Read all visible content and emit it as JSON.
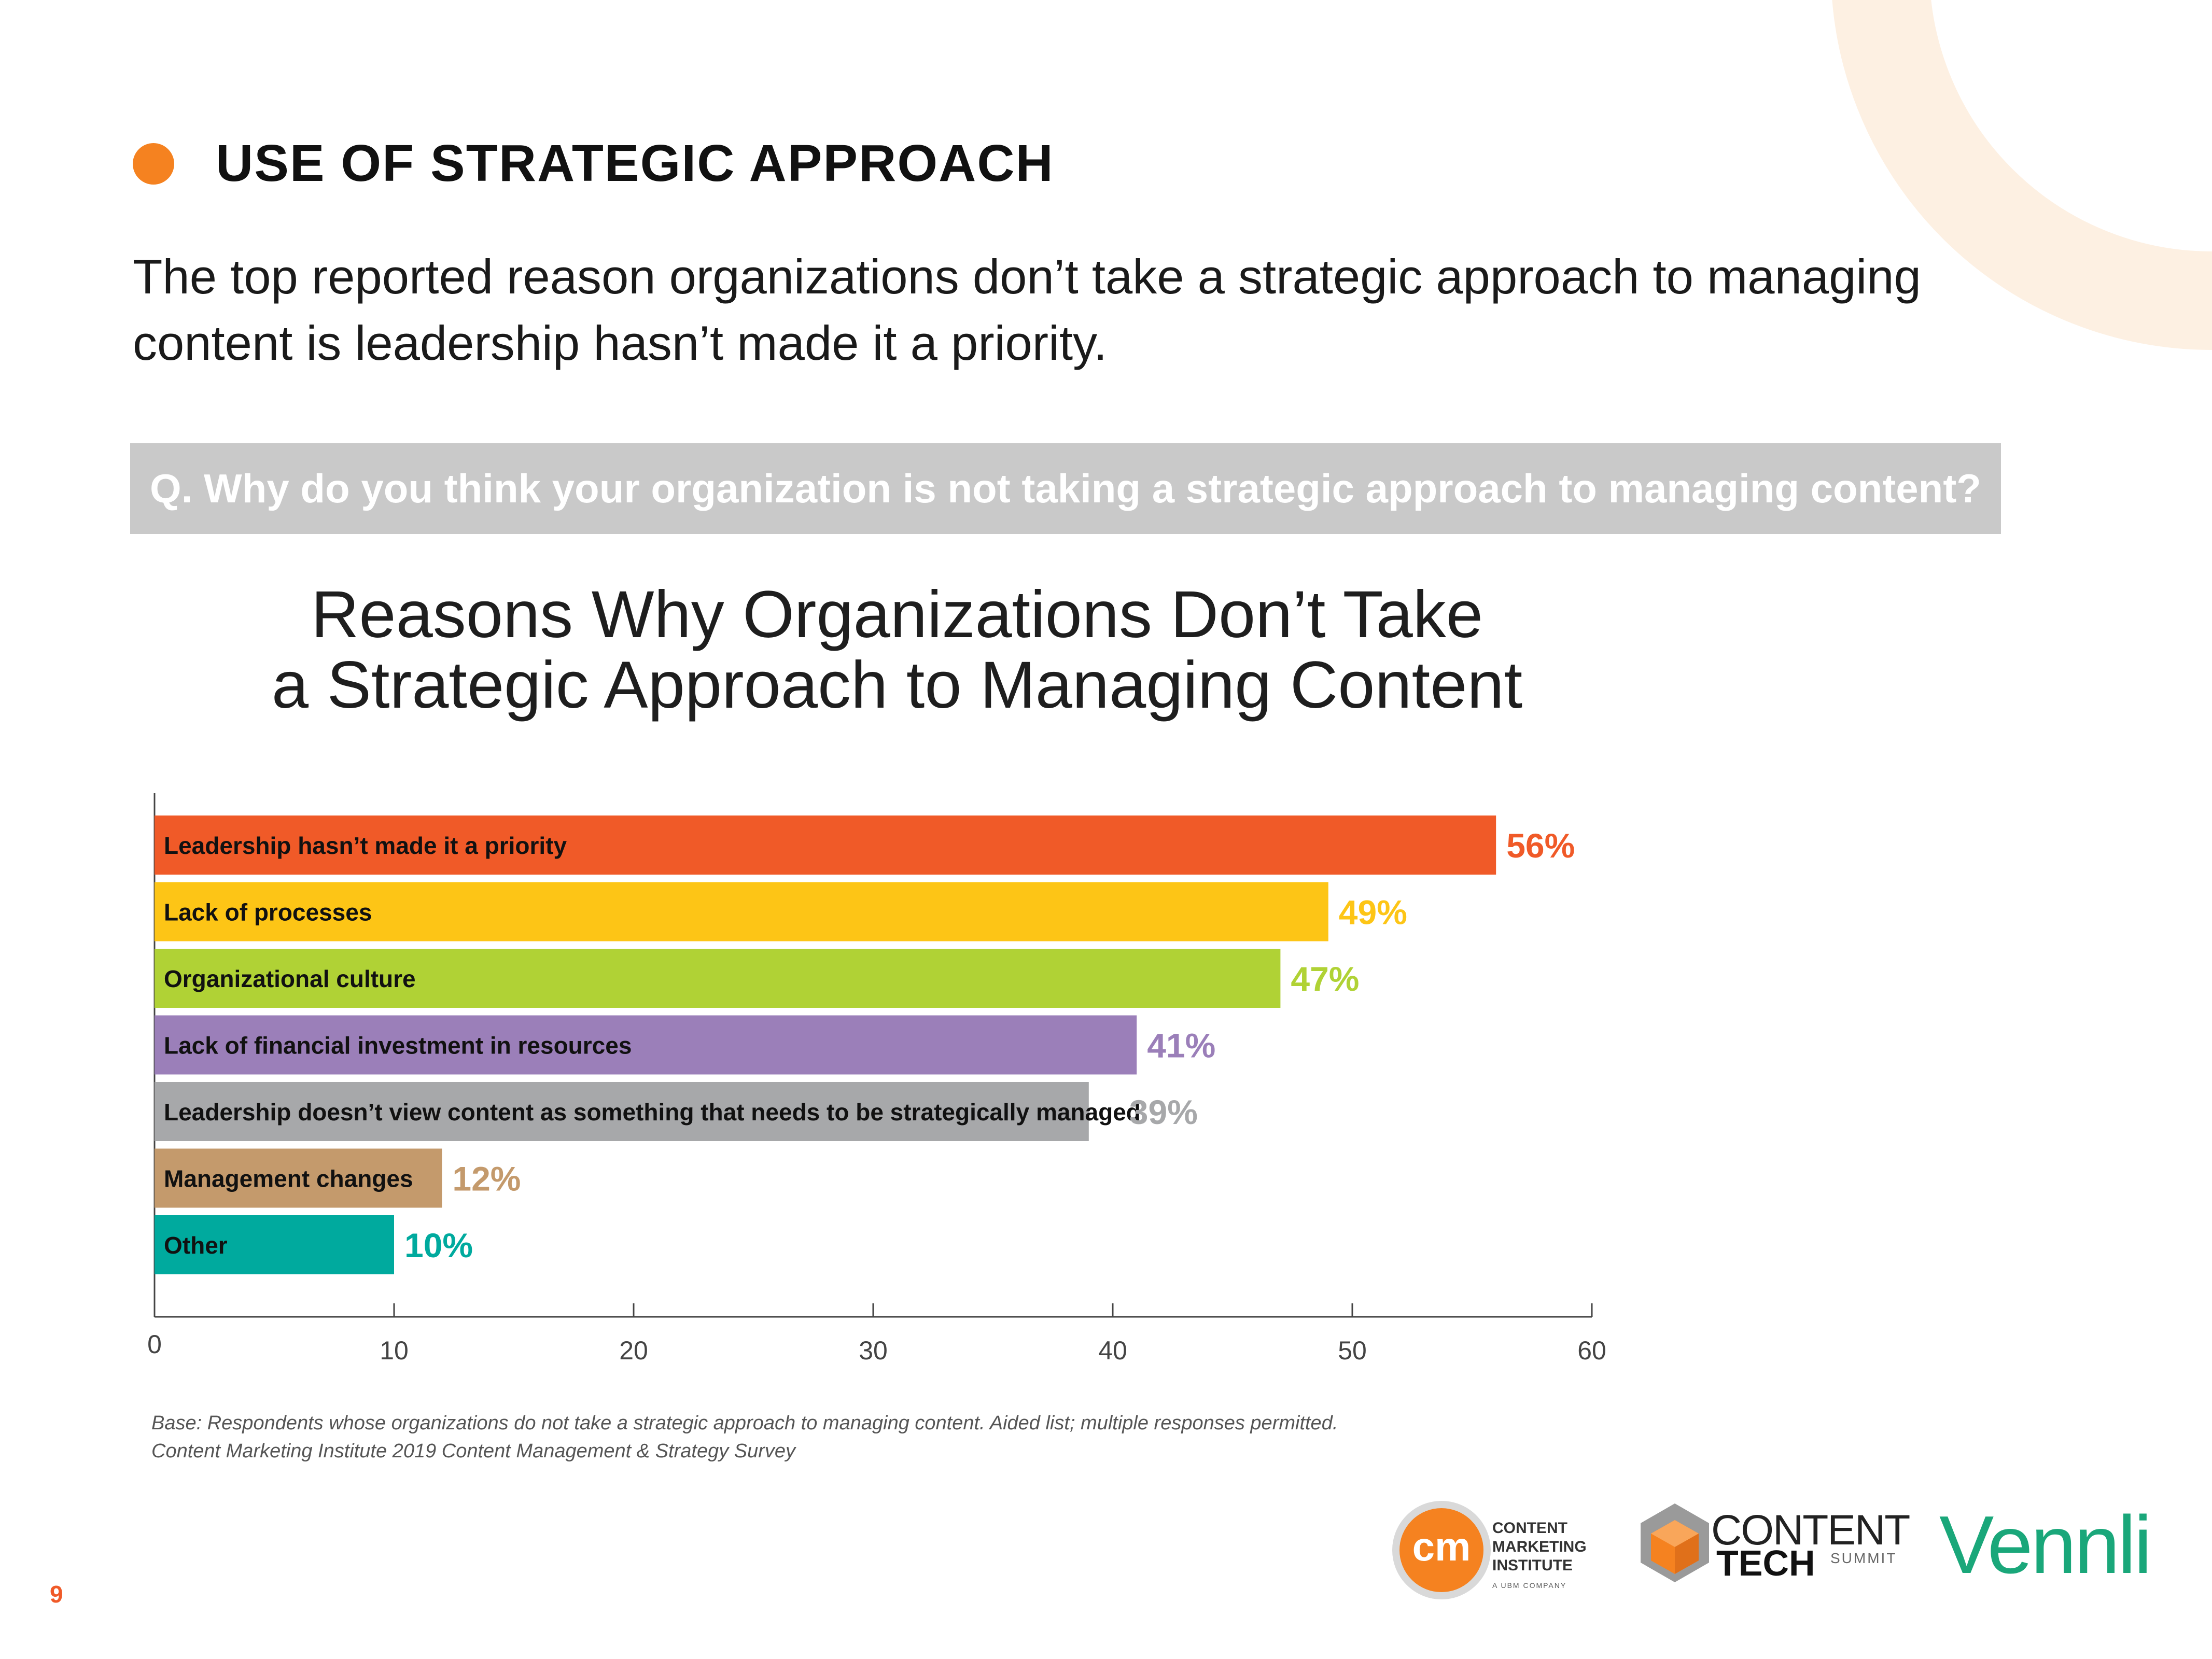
{
  "page": {
    "section_title": "USE OF STRATEGIC APPROACH",
    "subtitle": "The top reported reason organizations don’t take a strategic approach to managing content is leadership hasn’t made it a priority.",
    "question": "Q. Why do you think your organization is not taking a strategic approach to managing content?",
    "source_line_1": "Base: Respondents whose organizations do not take a strategic approach to managing content. Aided list; multiple responses permitted.",
    "source_line_2": "Content Marketing Institute 2019 Content Management & Strategy Survey",
    "page_number": "9",
    "accent_color": "#f58220"
  },
  "logos": {
    "cmi_badge": "cm",
    "cmi_line_1": "CONTENT",
    "cmi_line_2": "MARKETING",
    "cmi_line_3": "INSTITUTE",
    "cmi_sub": "A UBM COMPANY",
    "ct_line_1": "CONTENT",
    "ct_line_2": "TECH",
    "ct_line_3": "SUMMIT",
    "vennli": "Vennli"
  },
  "chart_data": {
    "type": "bar",
    "orientation": "horizontal",
    "title_line_1": "Reasons Why Organizations Don’t Take",
    "title_line_2": "a Strategic Approach to Managing Content",
    "xlabel": "",
    "ylabel": "",
    "xlim": [
      0,
      60
    ],
    "xticks": [
      0,
      10,
      20,
      30,
      40,
      50,
      60
    ],
    "grid": false,
    "categories": [
      "Leadership hasn’t made it a priority",
      "Lack of processes",
      "Organizational culture",
      "Lack of financial investment in resources",
      "Leadership doesn’t view content as something that needs to be strategically managed",
      "Management changes",
      "Other"
    ],
    "values": [
      56,
      49,
      47,
      41,
      39,
      12,
      10
    ],
    "value_labels": [
      "56%",
      "49%",
      "47%",
      "41%",
      "39%",
      "12%",
      "10%"
    ],
    "colors": [
      "#f05a28",
      "#fdc516",
      "#b0d235",
      "#9b7fb9",
      "#a7a8aa",
      "#c49a6c",
      "#00aa9e"
    ]
  }
}
